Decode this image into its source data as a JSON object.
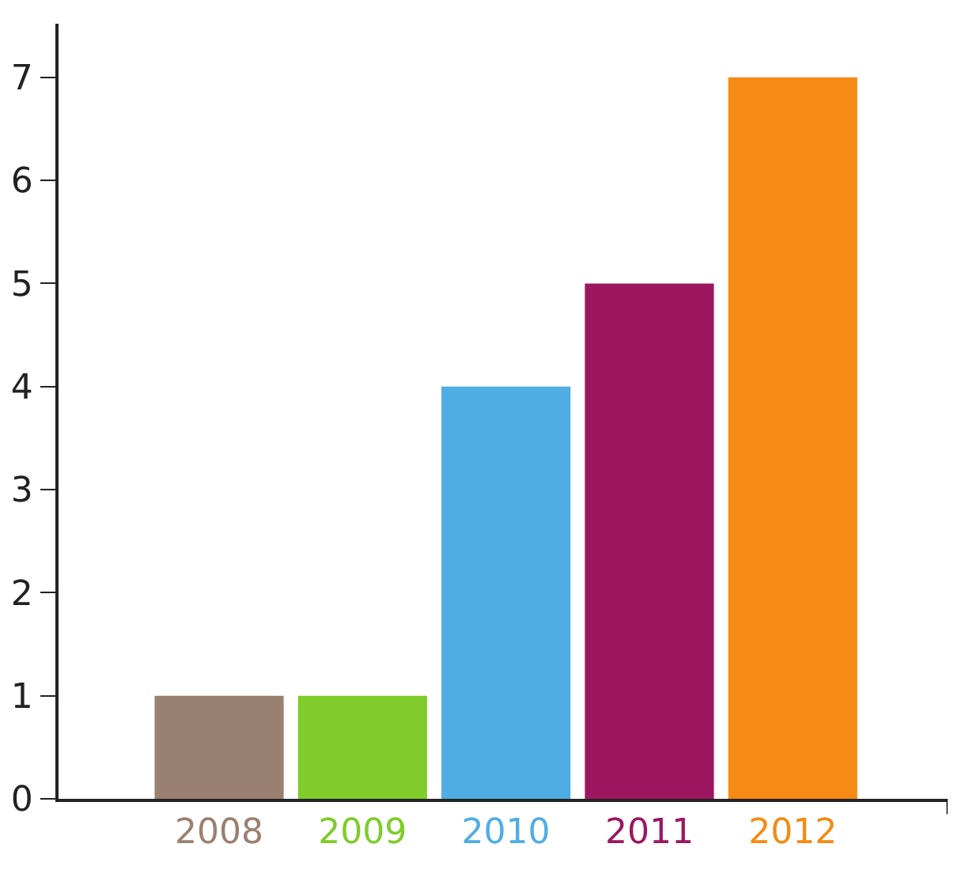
{
  "chart_data": {
    "type": "bar",
    "categories": [
      "2008",
      "2009",
      "2010",
      "2011",
      "2012"
    ],
    "values": [
      1,
      1,
      4,
      5,
      7
    ],
    "colors": [
      "#9a8070",
      "#7fcc2a",
      "#4fade3",
      "#9c1760",
      "#f58a14"
    ],
    "ylim": [
      0,
      7.52
    ],
    "yticks": [
      0,
      1,
      2,
      3,
      4,
      5,
      6,
      7
    ]
  }
}
